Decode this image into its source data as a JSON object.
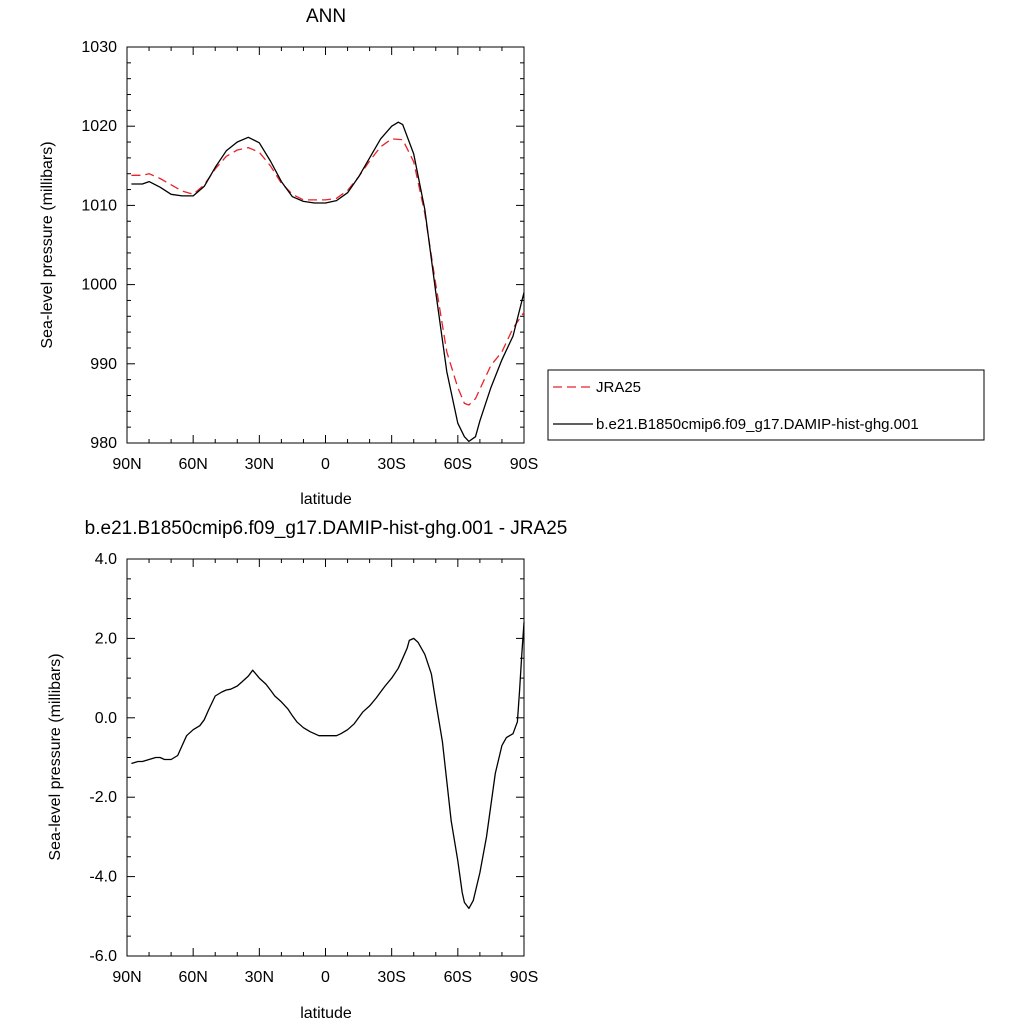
{
  "chart_data": [
    {
      "type": "line",
      "title": "ANN",
      "xlabel": "latitude",
      "ylabel": "Sea-level pressure (millibars)",
      "xlim": [
        90,
        -90
      ],
      "ylim": [
        980,
        1030
      ],
      "x_ticks": [
        90,
        60,
        30,
        0,
        -30,
        -60,
        -90
      ],
      "x_tick_labels": [
        "90N",
        "60N",
        "30N",
        "0",
        "30S",
        "60S",
        "90S"
      ],
      "y_ticks": [
        980,
        990,
        1000,
        1010,
        1020,
        1030
      ],
      "y_tick_labels": [
        "980",
        "990",
        "1000",
        "1010",
        "1020",
        "1030"
      ],
      "grid": false,
      "legend_position": "right",
      "series": [
        {
          "name": "JRA25",
          "color": "#e8232a",
          "dash": "dashed",
          "x": [
            88,
            83,
            80,
            75,
            70,
            65,
            60,
            55,
            50,
            45,
            40,
            35,
            30,
            25,
            20,
            15,
            10,
            5,
            0,
            -5,
            -10,
            -15,
            -20,
            -25,
            -30,
            -35,
            -40,
            -45,
            -50,
            -55,
            -60,
            -63,
            -65,
            -68,
            -70,
            -75,
            -80,
            -85,
            -90
          ],
          "values": [
            1013.8,
            1013.8,
            1014.0,
            1013.4,
            1012.6,
            1011.8,
            1011.4,
            1012.6,
            1014.6,
            1016.2,
            1017.0,
            1017.3,
            1016.7,
            1015.0,
            1012.8,
            1011.4,
            1010.7,
            1010.7,
            1010.7,
            1010.9,
            1011.9,
            1013.6,
            1015.6,
            1017.4,
            1018.4,
            1018.3,
            1015.5,
            1009.0,
            1000.0,
            991.5,
            987.0,
            985.0,
            984.8,
            985.6,
            986.8,
            989.8,
            991.5,
            994.5,
            996.5
          ]
        },
        {
          "name": "b.e21.B1850cmip6.f09_g17.DAMIP-hist-ghg.001",
          "color": "#000000",
          "dash": "solid",
          "x": [
            88,
            83,
            80,
            75,
            70,
            65,
            60,
            55,
            50,
            45,
            40,
            35,
            30,
            25,
            20,
            15,
            10,
            5,
            0,
            -5,
            -10,
            -15,
            -20,
            -25,
            -30,
            -33,
            -35,
            -40,
            -45,
            -50,
            -55,
            -60,
            -63,
            -65,
            -68,
            -70,
            -75,
            -80,
            -85,
            -90
          ],
          "values": [
            1012.7,
            1012.7,
            1013.0,
            1012.3,
            1011.4,
            1011.2,
            1011.2,
            1012.4,
            1014.8,
            1016.9,
            1018.0,
            1018.6,
            1017.9,
            1015.6,
            1013.0,
            1011.1,
            1010.5,
            1010.3,
            1010.3,
            1010.6,
            1011.6,
            1013.6,
            1016.0,
            1018.4,
            1020.0,
            1020.5,
            1020.2,
            1016.5,
            1009.5,
            999.0,
            989.0,
            982.5,
            980.8,
            980.2,
            980.8,
            982.8,
            987.0,
            990.5,
            993.5,
            999.0
          ]
        }
      ]
    },
    {
      "type": "line",
      "title": "b.e21.B1850cmip6.f09_g17.DAMIP-hist-ghg.001 - JRA25",
      "xlabel": "latitude",
      "ylabel": "Sea-level pressure (millibars)",
      "xlim": [
        90,
        -90
      ],
      "ylim": [
        -6,
        4
      ],
      "x_ticks": [
        90,
        60,
        30,
        0,
        -30,
        -60,
        -90
      ],
      "x_tick_labels": [
        "90N",
        "60N",
        "30N",
        "0",
        "30S",
        "60S",
        "90S"
      ],
      "y_ticks": [
        -6,
        -4,
        -2,
        0,
        2,
        4
      ],
      "y_tick_labels": [
        "-6.0",
        "-4.0",
        "-2.0",
        "0.0",
        "2.0",
        "4.0"
      ],
      "grid": false,
      "series": [
        {
          "color": "#000000",
          "dash": "solid",
          "x": [
            88,
            85,
            83,
            80,
            77,
            75,
            73,
            70,
            67,
            65,
            63,
            60,
            57,
            55,
            53,
            50,
            47,
            45,
            43,
            40,
            38,
            35,
            33,
            30,
            27,
            25,
            23,
            20,
            17,
            15,
            13,
            10,
            7,
            5,
            3,
            0,
            -3,
            -5,
            -7,
            -10,
            -13,
            -15,
            -17,
            -20,
            -23,
            -25,
            -27,
            -30,
            -33,
            -35,
            -37,
            -38,
            -40,
            -42,
            -45,
            -48,
            -50,
            -53,
            -55,
            -57,
            -60,
            -62,
            -63,
            -65,
            -67,
            -70,
            -73,
            -75,
            -77,
            -80,
            -82,
            -85,
            -87,
            -88,
            -89,
            -90
          ],
          "values": [
            -1.15,
            -1.1,
            -1.1,
            -1.05,
            -1.0,
            -1.0,
            -1.05,
            -1.05,
            -0.95,
            -0.7,
            -0.45,
            -0.3,
            -0.2,
            -0.05,
            0.2,
            0.55,
            0.65,
            0.7,
            0.72,
            0.8,
            0.9,
            1.05,
            1.2,
            1.0,
            0.85,
            0.7,
            0.55,
            0.4,
            0.22,
            0.05,
            -0.1,
            -0.25,
            -0.35,
            -0.4,
            -0.45,
            -0.45,
            -0.45,
            -0.45,
            -0.4,
            -0.3,
            -0.15,
            0.0,
            0.15,
            0.3,
            0.5,
            0.65,
            0.8,
            1.0,
            1.25,
            1.5,
            1.75,
            1.95,
            2.0,
            1.9,
            1.6,
            1.1,
            0.4,
            -0.6,
            -1.6,
            -2.6,
            -3.6,
            -4.4,
            -4.65,
            -4.8,
            -4.6,
            -3.9,
            -3.0,
            -2.2,
            -1.4,
            -0.7,
            -0.5,
            -0.4,
            -0.1,
            0.7,
            1.6,
            2.4
          ]
        }
      ]
    }
  ]
}
